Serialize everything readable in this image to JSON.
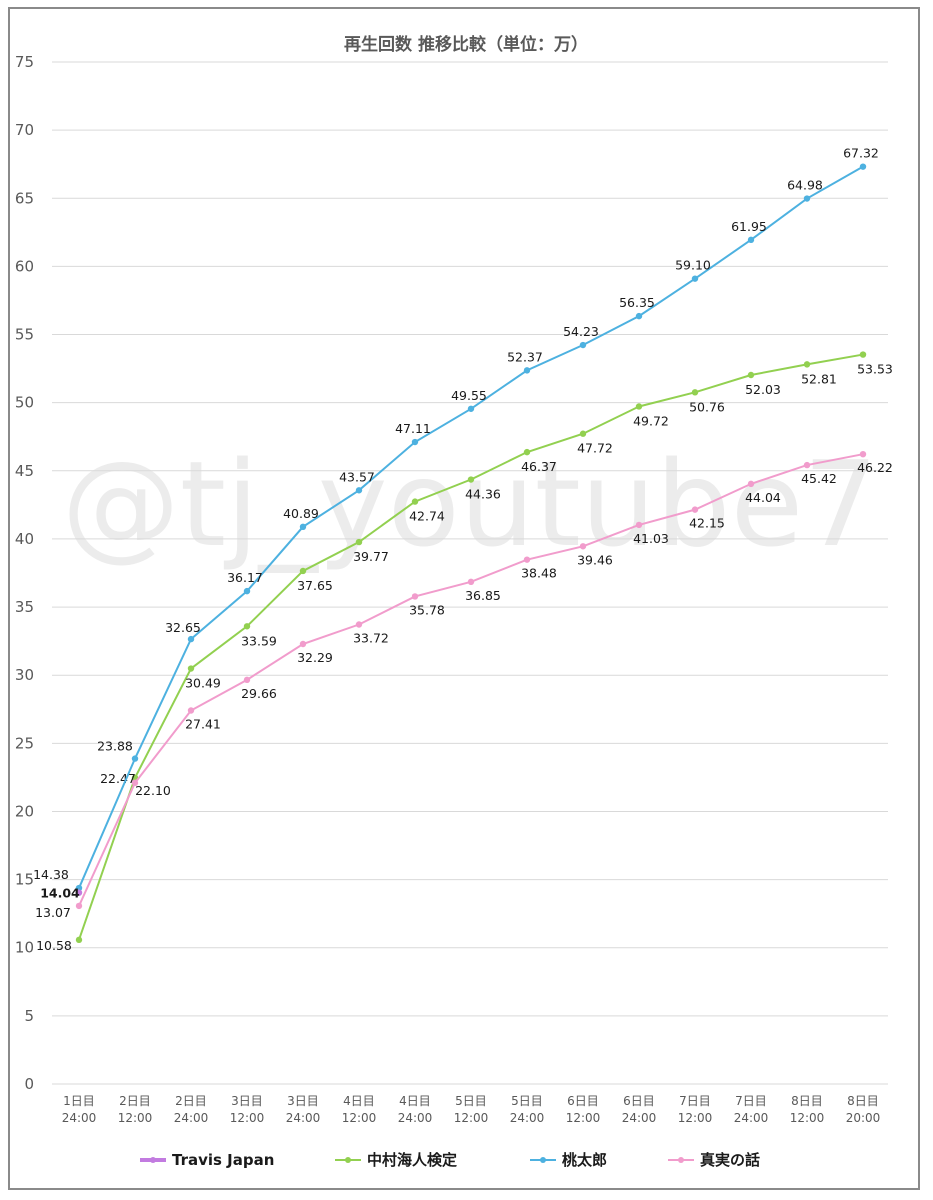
{
  "chart_data": {
    "type": "line",
    "title": "再生回数 推移比較（単位：万）",
    "watermark": "@tj_youtube7",
    "x_tick_labels": [
      [
        "1日目",
        "24:00"
      ],
      [
        "2日目",
        "12:00"
      ],
      [
        "2日目",
        "24:00"
      ],
      [
        "3日目",
        "12:00"
      ],
      [
        "3日目",
        "24:00"
      ],
      [
        "4日目",
        "12:00"
      ],
      [
        "4日目",
        "24:00"
      ],
      [
        "5日目",
        "12:00"
      ],
      [
        "5日目",
        "24:00"
      ],
      [
        "6日目",
        "12:00"
      ],
      [
        "6日目",
        "24:00"
      ],
      [
        "7日目",
        "12:00"
      ],
      [
        "7日目",
        "24:00"
      ],
      [
        "8日目",
        "12:00"
      ],
      [
        "8日目",
        "20:00"
      ]
    ],
    "ylim": [
      0,
      75
    ],
    "y_ticks": [
      0,
      5,
      10,
      15,
      20,
      25,
      30,
      35,
      40,
      45,
      50,
      55,
      60,
      65,
      70,
      75
    ],
    "grid": true,
    "legend_position": "bottom",
    "series": [
      {
        "name": "Travis Japan",
        "color": "#c27be0",
        "values": [
          14.04
        ],
        "labels": [
          "14.04"
        ]
      },
      {
        "name": "中村海人検定",
        "color": "#92d050",
        "values": [
          10.58,
          22.47,
          30.49,
          33.59,
          37.65,
          39.77,
          42.74,
          44.36,
          46.37,
          47.72,
          49.72,
          50.76,
          52.03,
          52.81,
          53.53
        ],
        "labels": [
          "10.58",
          "22.47",
          "30.49",
          "33.59",
          "37.65",
          "39.77",
          "42.74",
          "44.36",
          "46.37",
          "47.72",
          "49.72",
          "50.76",
          "52.03",
          "52.81",
          "53.53"
        ]
      },
      {
        "name": "桃太郎",
        "color": "#4db1e0",
        "values": [
          14.38,
          23.88,
          32.65,
          36.17,
          40.89,
          43.57,
          47.11,
          49.55,
          52.37,
          54.23,
          56.35,
          59.1,
          61.95,
          64.98,
          67.32
        ],
        "labels": [
          "14.38",
          "23.88",
          "32.65",
          "36.17",
          "40.89",
          "43.57",
          "47.11",
          "49.55",
          "52.37",
          "54.23",
          "56.35",
          "59.10",
          "61.95",
          "64.98",
          "67.32"
        ]
      },
      {
        "name": "真実の話",
        "color": "#f19ccc",
        "values": [
          13.07,
          22.1,
          27.41,
          29.66,
          32.29,
          33.72,
          35.78,
          36.85,
          38.48,
          39.46,
          41.03,
          42.15,
          44.04,
          45.42,
          46.22
        ],
        "labels": [
          "13.07",
          "22.10",
          "27.41",
          "29.66",
          "32.29",
          "33.72",
          "35.78",
          "36.85",
          "38.48",
          "39.46",
          "41.03",
          "42.15",
          "44.04",
          "45.42",
          "46.22"
        ]
      }
    ]
  }
}
